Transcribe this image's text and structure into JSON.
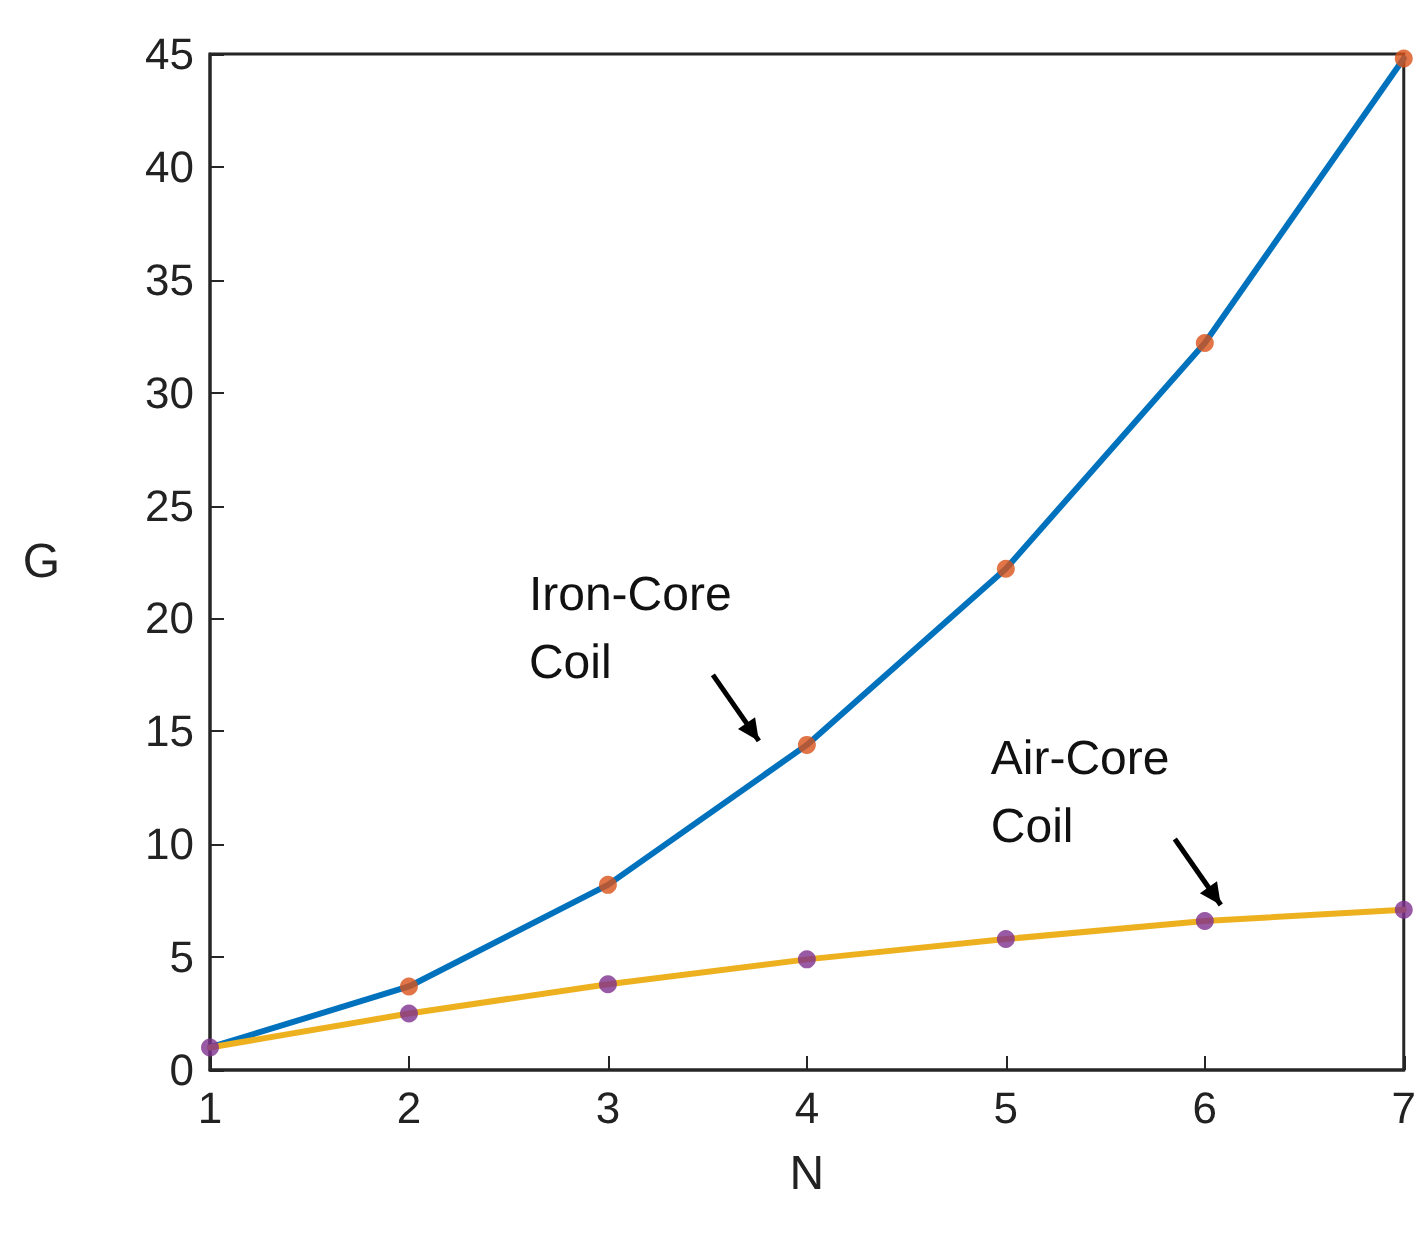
{
  "chart_data": {
    "type": "line",
    "xlabel": "N",
    "ylabel": "G",
    "x": [
      1,
      2,
      3,
      4,
      5,
      6,
      7
    ],
    "series": [
      {
        "color": "#0072bd",
        "values": [
          1,
          3.7,
          8.2,
          14.4,
          22.2,
          32.2,
          44.8
        ],
        "marker": "none"
      },
      {
        "color": "#edb120",
        "values": [
          1,
          2.5,
          3.8,
          4.9,
          5.8,
          6.6,
          7.1
        ],
        "marker": "none"
      },
      {
        "type": "scatter",
        "color": "#d95319",
        "values": [
          null,
          3.7,
          8.2,
          14.4,
          22.2,
          32.2,
          44.8
        ],
        "marker": "circle"
      },
      {
        "type": "scatter",
        "color": "#7e2f8e",
        "values": [
          1,
          2.5,
          3.8,
          4.9,
          5.8,
          6.6,
          7.1
        ],
        "marker": "circle"
      }
    ],
    "xlim": [
      1,
      7
    ],
    "xticks": [
      1,
      2,
      3,
      4,
      5,
      6,
      7
    ],
    "ylim": [
      0,
      45
    ],
    "yticks": [
      0,
      5,
      10,
      15,
      20,
      25,
      30,
      35,
      40,
      45
    ],
    "grid": false,
    "annotations": [
      {
        "text": "Iron-Core\nCoil",
        "x": 4,
        "y": 14.4
      },
      {
        "text": "Air-Core\nCoil",
        "x": 6,
        "y": 6.6
      }
    ]
  }
}
